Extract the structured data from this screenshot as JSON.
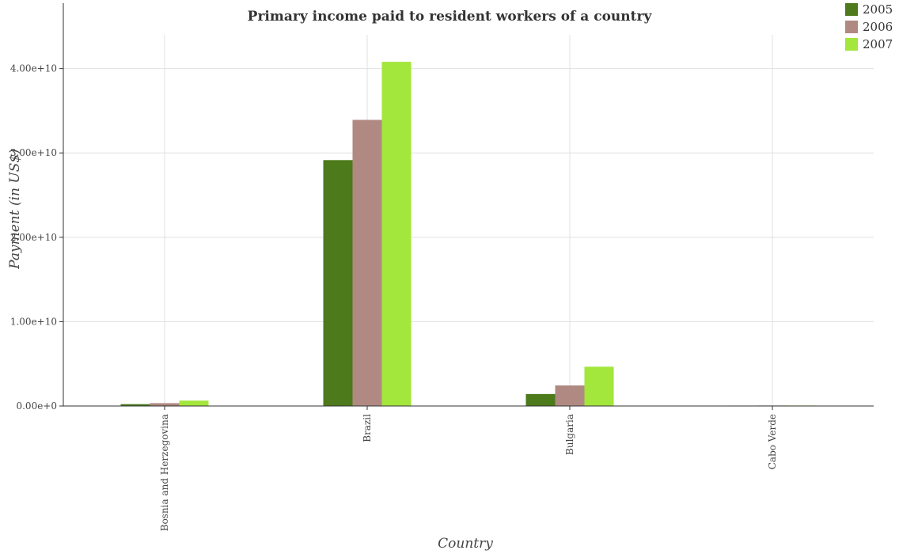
{
  "chart_data": {
    "type": "bar",
    "title": "Primary income paid to resident workers of a country",
    "xlabel": "Country",
    "ylabel": "Payment (in US$)",
    "categories": [
      "Bosnia and Herzegovina",
      "Brazil",
      "Bulgaria",
      "Cabo Verde"
    ],
    "series": [
      {
        "name": "2005",
        "color": "#4d7a1a",
        "values": [
          220000000,
          29150000000,
          1420000000,
          50000000
        ]
      },
      {
        "name": "2006",
        "color": "#b08a82",
        "values": [
          340000000,
          33920000000,
          2440000000,
          60000000
        ]
      },
      {
        "name": "2007",
        "color": "#a3e63c",
        "values": [
          640000000,
          40800000000,
          4660000000,
          60000000
        ]
      }
    ],
    "ylim": [
      0,
      44000000000
    ],
    "yticks": [
      0,
      10000000000,
      20000000000,
      30000000000,
      40000000000
    ],
    "ytick_labels": [
      "0.00e+0",
      "1.00e+10",
      "2.00e+10",
      "3.00e+10",
      "4.00e+10"
    ],
    "grid": true,
    "legend_position": "top-right"
  }
}
